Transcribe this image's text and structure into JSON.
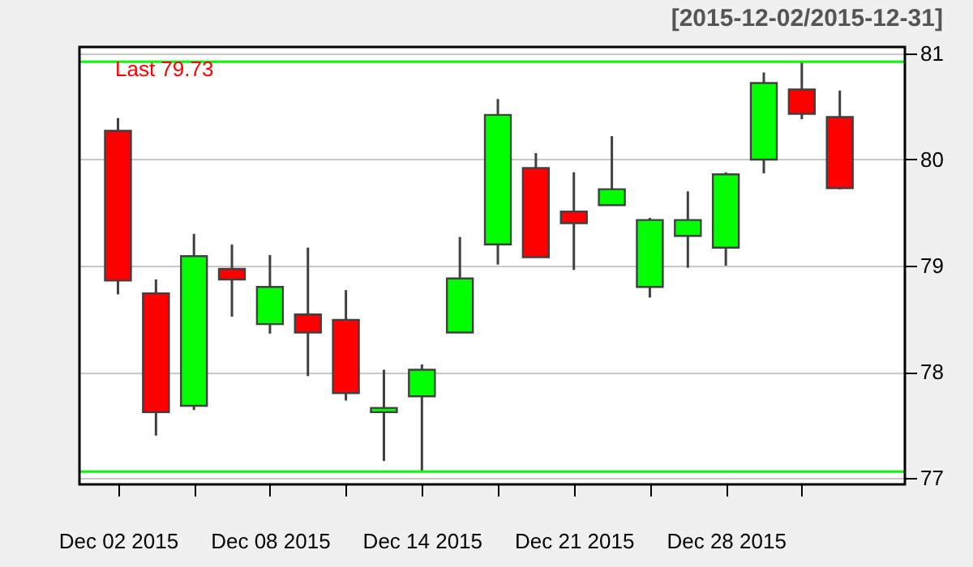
{
  "chart_data": {
    "type": "candlestick",
    "title": "[2015-12-02/2015-12-31]",
    "categories": [
      "Dec 02 2015",
      null,
      null,
      null,
      "Dec 08 2015",
      null,
      null,
      null,
      "Dec 14 2015",
      null,
      null,
      null,
      "Dec 21 2015",
      null,
      null,
      null,
      "Dec 28 2015",
      null,
      null,
      null
    ],
    "ohlc": [
      [
        80.27,
        80.39,
        78.73,
        78.86
      ],
      [
        78.74,
        78.87,
        77.4,
        77.62
      ],
      [
        77.68,
        79.3,
        77.64,
        79.09
      ],
      [
        78.97,
        79.2,
        78.52,
        78.87
      ],
      [
        78.45,
        79.1,
        78.36,
        78.8
      ],
      [
        78.54,
        79.17,
        77.96,
        78.37
      ],
      [
        78.49,
        78.77,
        77.73,
        77.8
      ],
      [
        77.62,
        78.02,
        77.16,
        77.66
      ],
      [
        77.77,
        78.07,
        77.07,
        78.02
      ],
      [
        78.37,
        79.27,
        78.37,
        78.88
      ],
      [
        79.2,
        80.57,
        79.01,
        80.42
      ],
      [
        79.92,
        80.06,
        79.08,
        79.08
      ],
      [
        79.51,
        79.88,
        78.96,
        79.4
      ],
      [
        79.57,
        80.22,
        79.57,
        79.72
      ],
      [
        78.8,
        79.45,
        78.7,
        79.43
      ],
      [
        79.28,
        79.7,
        78.98,
        79.43
      ],
      [
        79.17,
        79.88,
        79.0,
        79.86
      ],
      [
        80.0,
        80.82,
        79.87,
        80.72
      ],
      [
        80.66,
        80.92,
        80.38,
        80.43
      ],
      [
        80.4,
        80.65,
        79.72,
        79.73
      ]
    ],
    "colors": [
      "#ff0000",
      "#ff0000",
      "#00ff00",
      "#ff0000",
      "#00ff00",
      "#ff0000",
      "#ff0000",
      "#00ff00",
      "#00ff00",
      "#00ff00",
      "#00ff00",
      "#ff0000",
      "#ff0000",
      "#00ff00",
      "#00ff00",
      "#00ff00",
      "#00ff00",
      "#00ff00",
      "#ff0000",
      "#ff0000"
    ],
    "ylim": [
      76.94,
      81.06
    ],
    "yticks": [
      77,
      78,
      79,
      80,
      81
    ],
    "grid": "y",
    "ref_lines": [
      {
        "axis": "y",
        "value": 80.92,
        "color": "#00ff00"
      },
      {
        "axis": "y",
        "value": 77.06,
        "color": "#00ff00"
      }
    ],
    "annotations": [
      "Last 79.73"
    ]
  }
}
